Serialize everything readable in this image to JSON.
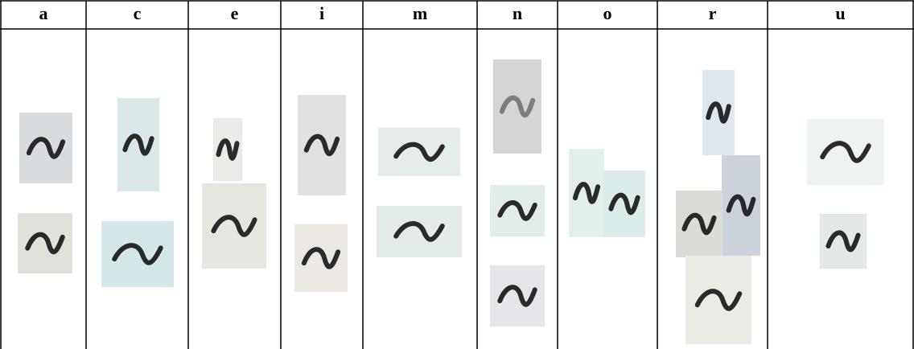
{
  "table": {
    "header": [
      "a",
      "c",
      "e",
      "i",
      "m",
      "n",
      "o",
      "r",
      "u"
    ]
  }
}
